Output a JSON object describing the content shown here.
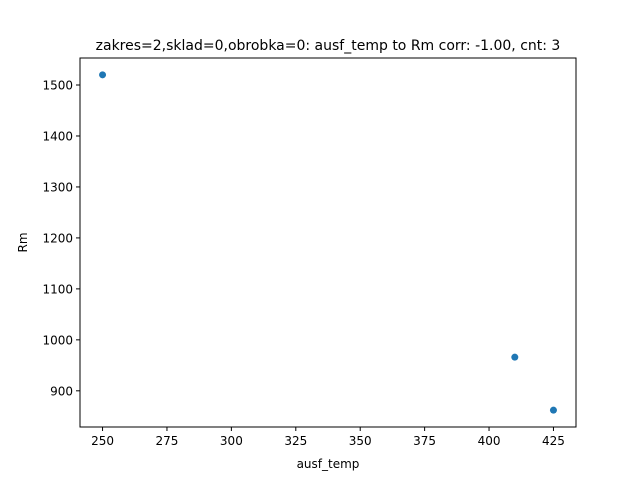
{
  "chart_data": {
    "type": "scatter",
    "title": "zakres=2,sklad=0,obrobka=0: ausf_temp to Rm corr: -1.00, cnt: 3",
    "xlabel": "ausf_temp",
    "ylabel": "Rm",
    "xlim": [
      241.25,
      433.75
    ],
    "ylim": [
      829,
      1553
    ],
    "xticks": [
      250,
      275,
      300,
      325,
      350,
      375,
      400,
      425
    ],
    "yticks": [
      900,
      1000,
      1100,
      1200,
      1300,
      1400,
      1500
    ],
    "grid": false,
    "legend": "none",
    "point_color": "#1f77b4",
    "x": [
      250,
      410,
      425
    ],
    "y": [
      1520,
      966,
      862
    ]
  }
}
